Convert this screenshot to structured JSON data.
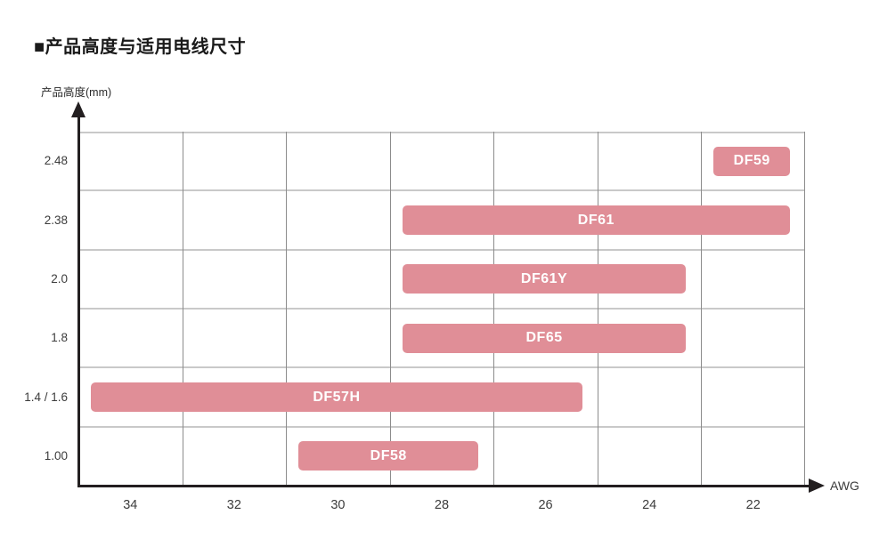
{
  "title": "■产品高度与适用电线尺寸",
  "colors": {
    "bar": "#e08e97",
    "bar_label": "#ffffff",
    "axis": "#231f20",
    "grid_vertical": "#8c8c8c",
    "grid_horizontal": "#c9c9c9",
    "text": "#3c3c3c",
    "background": "#ffffff"
  },
  "chart_data": {
    "type": "bar",
    "orientation": "horizontal-range",
    "title": "产品高度与适用电线尺寸",
    "xlabel": "AWG",
    "ylabel": "产品高度(mm)",
    "grid": true,
    "x_tick_labels": [
      "34",
      "32",
      "30",
      "28",
      "26",
      "24",
      "22"
    ],
    "x_axis_direction": "AWG decreasing to the right",
    "y_tick_labels": [
      "2.48",
      "2.38",
      "2.0",
      "1.8",
      "1.4 / 1.6",
      "1.00"
    ],
    "series": [
      {
        "name": "DF59",
        "height_mm": "2.48",
        "awg_from": 22,
        "awg_to": 22,
        "row": 0
      },
      {
        "name": "DF61",
        "height_mm": "2.38",
        "awg_from": 28,
        "awg_to": 22,
        "row": 1
      },
      {
        "name": "DF61Y",
        "height_mm": "2.0",
        "awg_from": 28,
        "awg_to": 24,
        "row": 2
      },
      {
        "name": "DF65",
        "height_mm": "1.8",
        "awg_from": 28,
        "awg_to": 24,
        "row": 3
      },
      {
        "name": "DF57H",
        "height_mm": "1.4 / 1.6",
        "awg_from": 34,
        "awg_to": 26,
        "row": 4
      },
      {
        "name": "DF58",
        "height_mm": "1.00",
        "awg_from": 30,
        "awg_to": 28,
        "row": 5
      }
    ]
  }
}
